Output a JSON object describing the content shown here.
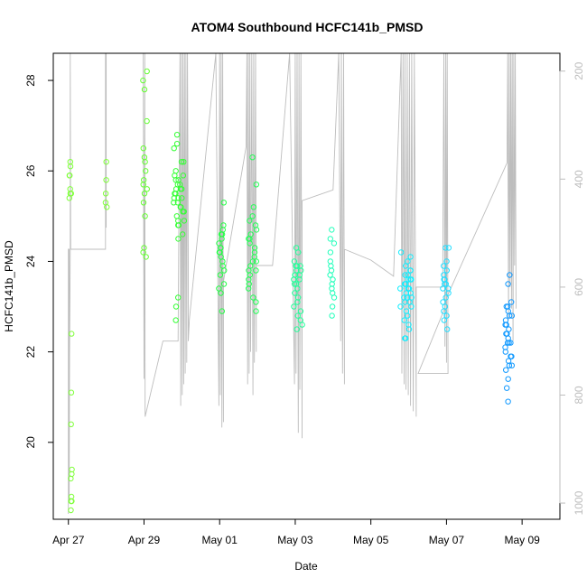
{
  "chart_data": {
    "type": "scatter",
    "title": "ATOM4 Southbound HCFC141b_PMSD",
    "xlabel": "Date",
    "ylabel": "HCFC141b_PMSD",
    "x_ticks": [
      "Apr 27",
      "Apr 29",
      "May 01",
      "May 03",
      "May 05",
      "May 07",
      "May 09"
    ],
    "y_ticks": [
      20,
      22,
      24,
      26,
      28
    ],
    "y2_ticks": [
      200,
      400,
      600,
      800,
      1000
    ],
    "xlim_days": [
      -0.4,
      13.0
    ],
    "ylim": [
      18.3,
      28.6
    ],
    "y2lim": [
      1030,
      167
    ],
    "colors": {
      "altitude_line": "#bdbdbd",
      "clusters": [
        "#7fff3a",
        "#66ff33",
        "#33ff33",
        "#22ff44",
        "#22ff88",
        "#22ffbb",
        "#22ffdd",
        "#11eeff",
        "#22ddff",
        "#1199ff"
      ]
    },
    "point_clusters": [
      {
        "day": 0.05,
        "jitter": 0.03,
        "color": "#7fff3a",
        "values": [
          26.2,
          26.1,
          25.9,
          25.9,
          25.6,
          25.5,
          25.4,
          25.5
        ]
      },
      {
        "day": 0.08,
        "jitter": 0.02,
        "color": "#7fff3a",
        "values": [
          22.4,
          21.1,
          20.4,
          19.4,
          19.3,
          19.2,
          18.8,
          18.7,
          18.7,
          18.5
        ]
      },
      {
        "day": 1.0,
        "jitter": 0.02,
        "color": "#7fff3a",
        "values": [
          26.2,
          25.8,
          25.5,
          25.3,
          25.2
        ]
      },
      {
        "day": 2.02,
        "jitter": 0.06,
        "color": "#66ff33",
        "values": [
          28.2,
          28.0,
          27.8,
          27.1,
          26.5,
          26.3,
          26.2,
          26.0,
          25.8,
          25.7,
          25.6,
          25.5,
          25.3,
          25.0,
          24.3,
          24.2,
          24.1
        ]
      },
      {
        "day": 2.92,
        "jitter": 0.15,
        "color": "#33ff33",
        "values": [
          26.8,
          26.6,
          26.5,
          26.2,
          26.0,
          25.9,
          25.8,
          25.8,
          25.7,
          25.7,
          25.6,
          25.6,
          25.5,
          25.5,
          25.4,
          25.4,
          25.3,
          25.3,
          25.2,
          25.2,
          25.1,
          25.0,
          24.9,
          24.8,
          24.8,
          24.6,
          24.5,
          23.2,
          23.0,
          22.7,
          26.2,
          25.9,
          25.6,
          25.4,
          25.1,
          24.9
        ]
      },
      {
        "day": 4.05,
        "jitter": 0.07,
        "color": "#22ff44",
        "values": [
          25.3,
          24.8,
          24.7,
          24.6,
          24.5,
          24.4,
          24.3,
          24.3,
          24.2,
          24.1,
          24.0,
          23.9,
          23.7,
          23.5,
          23.4,
          23.3,
          22.9,
          24.6,
          24.2,
          23.8
        ]
      },
      {
        "day": 4.88,
        "jitter": 0.12,
        "color": "#22ff55",
        "values": [
          26.3,
          25.7,
          25.2,
          25.0,
          24.9,
          24.8,
          24.7,
          24.6,
          24.5,
          24.4,
          24.3,
          24.2,
          24.1,
          24.0,
          23.9,
          23.8,
          23.7,
          23.6,
          23.5,
          23.4,
          23.2,
          23.1,
          22.9,
          24.5,
          24.0,
          23.8
        ]
      },
      {
        "day": 6.08,
        "jitter": 0.12,
        "color": "#22ff99",
        "values": [
          24.3,
          24.2,
          24.0,
          23.9,
          23.9,
          23.8,
          23.8,
          23.7,
          23.7,
          23.6,
          23.6,
          23.5,
          23.4,
          23.3,
          23.2,
          23.1,
          23.0,
          22.9,
          22.8,
          22.7,
          22.5,
          22.6,
          23.9,
          23.7,
          23.5
        ]
      },
      {
        "day": 6.98,
        "jitter": 0.06,
        "color": "#22ffbb",
        "values": [
          24.7,
          24.5,
          24.4,
          24.2,
          24.0,
          23.9,
          23.8,
          23.7,
          23.6,
          23.5,
          23.4,
          23.3,
          23.2,
          23.0,
          22.8
        ]
      },
      {
        "day": 8.92,
        "jitter": 0.16,
        "color": "#11eeff",
        "values": [
          24.2,
          24.1,
          24.0,
          23.9,
          23.8,
          23.7,
          23.7,
          23.6,
          23.6,
          23.5,
          23.5,
          23.4,
          23.4,
          23.3,
          23.3,
          23.2,
          23.2,
          23.1,
          23.1,
          23.0,
          23.0,
          22.9,
          22.8,
          22.7,
          22.6,
          22.5,
          22.3,
          22.3,
          23.8,
          23.6,
          23.4,
          23.2
        ]
      },
      {
        "day": 9.98,
        "jitter": 0.08,
        "color": "#22ddff",
        "values": [
          24.3,
          24.3,
          24.0,
          23.9,
          23.8,
          23.7,
          23.6,
          23.5,
          23.5,
          23.4,
          23.3,
          23.2,
          23.1,
          23.0,
          22.9,
          22.8,
          22.7,
          22.5,
          23.6,
          23.4
        ]
      },
      {
        "day": 11.65,
        "jitter": 0.1,
        "color": "#1199ff",
        "values": [
          23.7,
          23.5,
          23.1,
          23.0,
          23.0,
          22.9,
          22.8,
          22.8,
          22.7,
          22.6,
          22.5,
          22.4,
          22.3,
          22.2,
          22.2,
          22.1,
          22.0,
          21.9,
          21.8,
          21.7,
          21.7,
          21.6,
          21.4,
          21.2,
          20.9,
          22.6,
          22.4,
          22.2,
          21.9
        ]
      }
    ],
    "altitude_path": [
      [
        0.0,
        1020
      ],
      [
        0.0,
        530
      ],
      [
        0.02,
        530
      ],
      [
        0.02,
        1000
      ],
      [
        0.03,
        730
      ],
      [
        0.05,
        530
      ],
      [
        0.05,
        167
      ],
      [
        0.06,
        530
      ],
      [
        0.5,
        530
      ],
      [
        0.98,
        530
      ],
      [
        0.98,
        167
      ],
      [
        1.0,
        490
      ],
      [
        1.0,
        167
      ],
      [
        1.98,
        167
      ],
      [
        2.0,
        770
      ],
      [
        2.02,
        167
      ],
      [
        2.03,
        840
      ],
      [
        2.5,
        700
      ],
      [
        2.9,
        700
      ],
      [
        2.95,
        167
      ],
      [
        2.97,
        820
      ],
      [
        2.99,
        167
      ],
      [
        3.01,
        800
      ],
      [
        3.03,
        167
      ],
      [
        3.05,
        780
      ],
      [
        3.07,
        167
      ],
      [
        3.09,
        760
      ],
      [
        3.11,
        167
      ],
      [
        3.13,
        740
      ],
      [
        3.15,
        167
      ],
      [
        3.17,
        560
      ],
      [
        3.17,
        700
      ],
      [
        3.2,
        660
      ],
      [
        3.9,
        167
      ],
      [
        3.98,
        820
      ],
      [
        4.0,
        167
      ],
      [
        4.02,
        800
      ],
      [
        4.04,
        167
      ],
      [
        4.06,
        860
      ],
      [
        4.08,
        167
      ],
      [
        4.1,
        850
      ],
      [
        4.1,
        590
      ],
      [
        4.7,
        340
      ],
      [
        4.72,
        167
      ],
      [
        4.74,
        780
      ],
      [
        4.76,
        167
      ],
      [
        4.78,
        760
      ],
      [
        4.8,
        167
      ],
      [
        4.82,
        720
      ],
      [
        4.85,
        167
      ],
      [
        4.88,
        800
      ],
      [
        4.9,
        167
      ],
      [
        4.92,
        740
      ],
      [
        4.95,
        167
      ],
      [
        4.97,
        720
      ],
      [
        4.97,
        560
      ],
      [
        5.4,
        560
      ],
      [
        5.85,
        167
      ],
      [
        5.98,
        780
      ],
      [
        6.0,
        167
      ],
      [
        6.02,
        760
      ],
      [
        6.05,
        167
      ],
      [
        6.08,
        870
      ],
      [
        6.1,
        167
      ],
      [
        6.12,
        790
      ],
      [
        6.15,
        167
      ],
      [
        6.18,
        880
      ],
      [
        6.18,
        440
      ],
      [
        7.0,
        420
      ],
      [
        7.15,
        167
      ],
      [
        7.2,
        700
      ],
      [
        7.22,
        167
      ],
      [
        7.25,
        760
      ],
      [
        7.28,
        167
      ],
      [
        7.3,
        780
      ],
      [
        7.3,
        530
      ],
      [
        8.0,
        550
      ],
      [
        8.6,
        580
      ],
      [
        8.8,
        167
      ],
      [
        8.82,
        760
      ],
      [
        8.85,
        167
      ],
      [
        8.88,
        780
      ],
      [
        8.9,
        167
      ],
      [
        8.93,
        790
      ],
      [
        8.96,
        167
      ],
      [
        8.99,
        800
      ],
      [
        9.02,
        167
      ],
      [
        9.05,
        820
      ],
      [
        9.08,
        167
      ],
      [
        9.12,
        830
      ],
      [
        9.15,
        167
      ],
      [
        9.2,
        840
      ],
      [
        9.2,
        600
      ],
      [
        9.9,
        600
      ],
      [
        9.93,
        167
      ],
      [
        9.96,
        710
      ],
      [
        9.98,
        167
      ],
      [
        10.0,
        740
      ],
      [
        10.02,
        167
      ],
      [
        10.04,
        760
      ],
      [
        10.04,
        760
      ],
      [
        9.25,
        760
      ],
      [
        9.95,
        640
      ],
      [
        10.0,
        620
      ],
      [
        11.6,
        370
      ],
      [
        11.62,
        167
      ],
      [
        11.64,
        660
      ],
      [
        11.66,
        167
      ],
      [
        11.68,
        600
      ],
      [
        11.7,
        167
      ],
      [
        11.72,
        640
      ],
      [
        11.74,
        167
      ],
      [
        11.76,
        700
      ],
      [
        11.78,
        167
      ],
      [
        11.8,
        560
      ],
      [
        11.82,
        167
      ],
      [
        11.84,
        640
      ]
    ]
  }
}
